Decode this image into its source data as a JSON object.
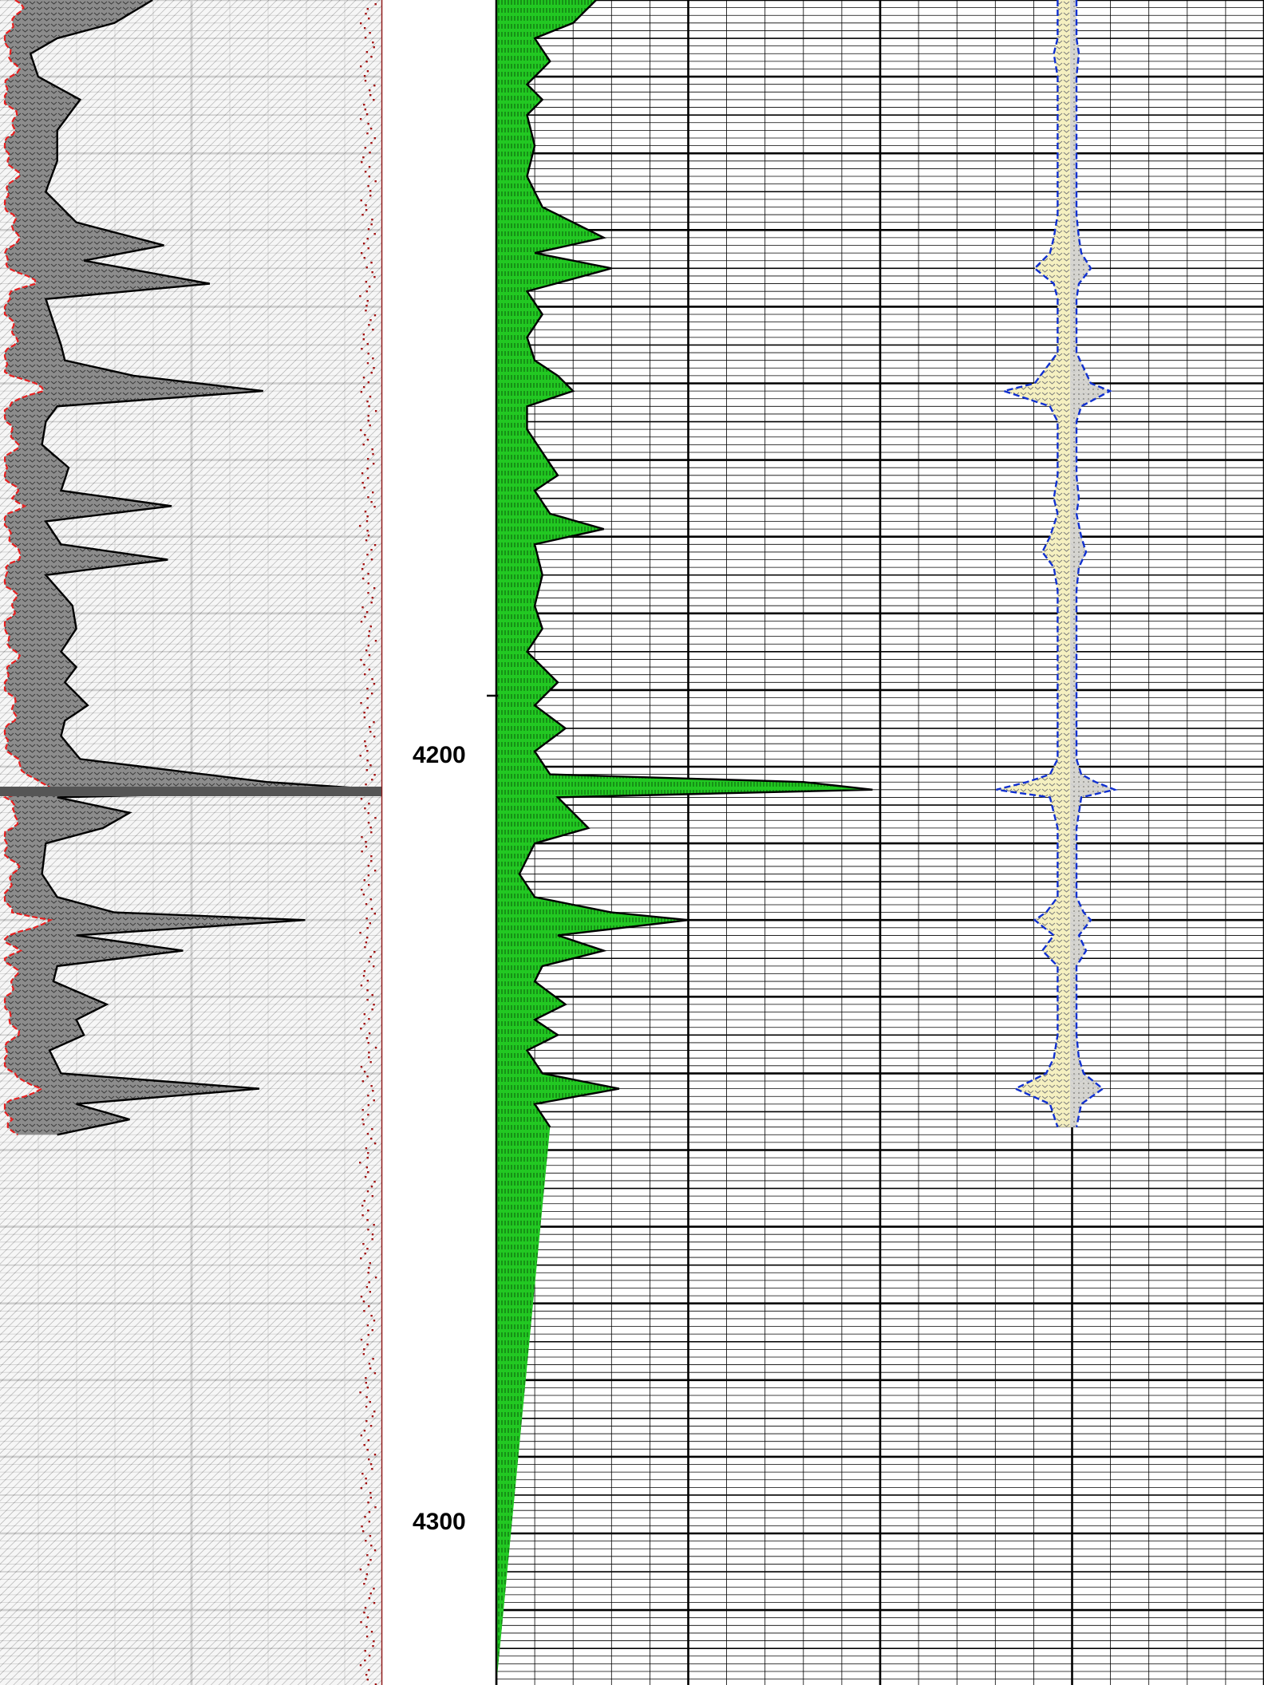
{
  "chart_data": {
    "type": "line",
    "depth_axis": {
      "range": [
        4105,
        4325
      ],
      "labels": [
        "4200",
        "4300"
      ],
      "label_values": [
        4200,
        4300
      ]
    },
    "colors": {
      "track1_fill": "#8c8c8c",
      "track1_curve": "#000000",
      "track1_red_curve": "#e62020",
      "track1_dotted": "#a01010",
      "track2_fill": "#20c820",
      "track3_fill": "#f5f0c0",
      "track3_outline": "#1030d0"
    },
    "tracks": [
      {
        "name": "",
        "grid": "linear",
        "series": [
          {
            "name": "",
            "style": "filled",
            "points": [
              [
                4105,
                0.4
              ],
              [
                4108,
                0.3
              ],
              [
                4110,
                0.15
              ],
              [
                4112,
                0.08
              ],
              [
                4115,
                0.1
              ],
              [
                4118,
                0.21
              ],
              [
                4122,
                0.15
              ],
              [
                4126,
                0.15
              ],
              [
                4130,
                0.12
              ],
              [
                4134,
                0.2
              ],
              [
                4137,
                0.43
              ],
              [
                4139,
                0.22
              ],
              [
                4142,
                0.55
              ],
              [
                4144,
                0.12
              ],
              [
                4147,
                0.14
              ],
              [
                4150,
                0.16
              ],
              [
                4152,
                0.17
              ],
              [
                4154,
                0.35
              ],
              [
                4156,
                0.69
              ],
              [
                4158,
                0.15
              ],
              [
                4160,
                0.12
              ],
              [
                4163,
                0.11
              ],
              [
                4166,
                0.18
              ],
              [
                4169,
                0.16
              ],
              [
                4171,
                0.45
              ],
              [
                4173,
                0.12
              ],
              [
                4176,
                0.16
              ],
              [
                4178,
                0.44
              ],
              [
                4180,
                0.12
              ],
              [
                4184,
                0.19
              ],
              [
                4187,
                0.2
              ],
              [
                4190,
                0.16
              ],
              [
                4192,
                0.2
              ],
              [
                4194,
                0.17
              ],
              [
                4197,
                0.23
              ],
              [
                4199,
                0.17
              ],
              [
                4201,
                0.16
              ],
              [
                4204,
                0.21
              ],
              [
                4207,
                0.7
              ],
              [
                4208,
                1.0
              ],
              [
                4209,
                0.15
              ],
              [
                4211,
                0.34
              ],
              [
                4213,
                0.27
              ],
              [
                4215,
                0.12
              ],
              [
                4219,
                0.11
              ],
              [
                4222,
                0.15
              ],
              [
                4224,
                0.3
              ],
              [
                4225,
                0.8
              ],
              [
                4227,
                0.2
              ],
              [
                4229,
                0.48
              ],
              [
                4231,
                0.15
              ],
              [
                4233,
                0.14
              ],
              [
                4236,
                0.28
              ],
              [
                4238,
                0.2
              ],
              [
                4240,
                0.22
              ],
              [
                4242,
                0.13
              ],
              [
                4245,
                0.16
              ],
              [
                4247,
                0.68
              ],
              [
                4249,
                0.2
              ],
              [
                4251,
                0.34
              ],
              [
                4253,
                0.15
              ]
            ]
          },
          {
            "name": "",
            "style": "dashed",
            "role": "left boundary"
          },
          {
            "name": "",
            "style": "dotted",
            "role": "right edge trace"
          }
        ]
      },
      {
        "name": "",
        "grid": "linear",
        "series": [
          {
            "name": "",
            "style": "filled",
            "points": [
              [
                4105,
                0.13
              ],
              [
                4108,
                0.1
              ],
              [
                4110,
                0.05
              ],
              [
                4113,
                0.07
              ],
              [
                4116,
                0.04
              ],
              [
                4118,
                0.06
              ],
              [
                4120,
                0.04
              ],
              [
                4124,
                0.05
              ],
              [
                4128,
                0.04
              ],
              [
                4132,
                0.06
              ],
              [
                4136,
                0.14
              ],
              [
                4138,
                0.05
              ],
              [
                4140,
                0.15
              ],
              [
                4143,
                0.04
              ],
              [
                4146,
                0.06
              ],
              [
                4149,
                0.04
              ],
              [
                4152,
                0.05
              ],
              [
                4154,
                0.08
              ],
              [
                4156,
                0.1
              ],
              [
                4158,
                0.04
              ],
              [
                4161,
                0.04
              ],
              [
                4164,
                0.06
              ],
              [
                4167,
                0.08
              ],
              [
                4169,
                0.05
              ],
              [
                4172,
                0.07
              ],
              [
                4174,
                0.14
              ],
              [
                4176,
                0.05
              ],
              [
                4180,
                0.06
              ],
              [
                4184,
                0.05
              ],
              [
                4187,
                0.06
              ],
              [
                4190,
                0.04
              ],
              [
                4194,
                0.08
              ],
              [
                4197,
                0.05
              ],
              [
                4200,
                0.09
              ],
              [
                4203,
                0.05
              ],
              [
                4206,
                0.07
              ],
              [
                4207,
                0.4
              ],
              [
                4208,
                0.49
              ],
              [
                4209,
                0.08
              ],
              [
                4211,
                0.1
              ],
              [
                4213,
                0.12
              ],
              [
                4215,
                0.05
              ],
              [
                4219,
                0.03
              ],
              [
                4222,
                0.05
              ],
              [
                4224,
                0.15
              ],
              [
                4225,
                0.25
              ],
              [
                4227,
                0.08
              ],
              [
                4229,
                0.14
              ],
              [
                4231,
                0.06
              ],
              [
                4233,
                0.05
              ],
              [
                4236,
                0.09
              ],
              [
                4238,
                0.05
              ],
              [
                4240,
                0.08
              ],
              [
                4242,
                0.04
              ],
              [
                4245,
                0.06
              ],
              [
                4247,
                0.16
              ],
              [
                4249,
                0.05
              ],
              [
                4252,
                0.07
              ]
            ]
          }
        ]
      },
      {
        "name": "",
        "grid": "linear",
        "series": [
          {
            "name": "",
            "style": "filled-symmetric",
            "points": [
              [
                4105,
                0.02
              ],
              [
                4108,
                0.02
              ],
              [
                4110,
                0.02
              ],
              [
                4112,
                0.03
              ],
              [
                4115,
                0.02
              ],
              [
                4118,
                0.02
              ],
              [
                4122,
                0.02
              ],
              [
                4126,
                0.02
              ],
              [
                4130,
                0.02
              ],
              [
                4133,
                0.02
              ],
              [
                4136,
                0.03
              ],
              [
                4138,
                0.04
              ],
              [
                4140,
                0.08
              ],
              [
                4142,
                0.03
              ],
              [
                4144,
                0.02
              ],
              [
                4148,
                0.02
              ],
              [
                4151,
                0.02
              ],
              [
                4153,
                0.05
              ],
              [
                4155,
                0.08
              ],
              [
                4156,
                0.16
              ],
              [
                4158,
                0.04
              ],
              [
                4160,
                0.02
              ],
              [
                4164,
                0.02
              ],
              [
                4167,
                0.02
              ],
              [
                4170,
                0.03
              ],
              [
                4172,
                0.02
              ],
              [
                4175,
                0.04
              ],
              [
                4177,
                0.06
              ],
              [
                4179,
                0.03
              ],
              [
                4182,
                0.02
              ],
              [
                4186,
                0.02
              ],
              [
                4190,
                0.02
              ],
              [
                4194,
                0.02
              ],
              [
                4198,
                0.02
              ],
              [
                4201,
                0.02
              ],
              [
                4204,
                0.02
              ],
              [
                4206,
                0.04
              ],
              [
                4207,
                0.1
              ],
              [
                4208,
                0.18
              ],
              [
                4209,
                0.04
              ],
              [
                4211,
                0.03
              ],
              [
                4213,
                0.02
              ],
              [
                4216,
                0.02
              ],
              [
                4219,
                0.02
              ],
              [
                4222,
                0.02
              ],
              [
                4224,
                0.05
              ],
              [
                4225,
                0.08
              ],
              [
                4227,
                0.03
              ],
              [
                4229,
                0.06
              ],
              [
                4231,
                0.02
              ],
              [
                4234,
                0.02
              ],
              [
                4237,
                0.02
              ],
              [
                4240,
                0.02
              ],
              [
                4243,
                0.03
              ],
              [
                4245,
                0.05
              ],
              [
                4247,
                0.13
              ],
              [
                4249,
                0.04
              ],
              [
                4252,
                0.02
              ]
            ]
          }
        ]
      }
    ]
  }
}
